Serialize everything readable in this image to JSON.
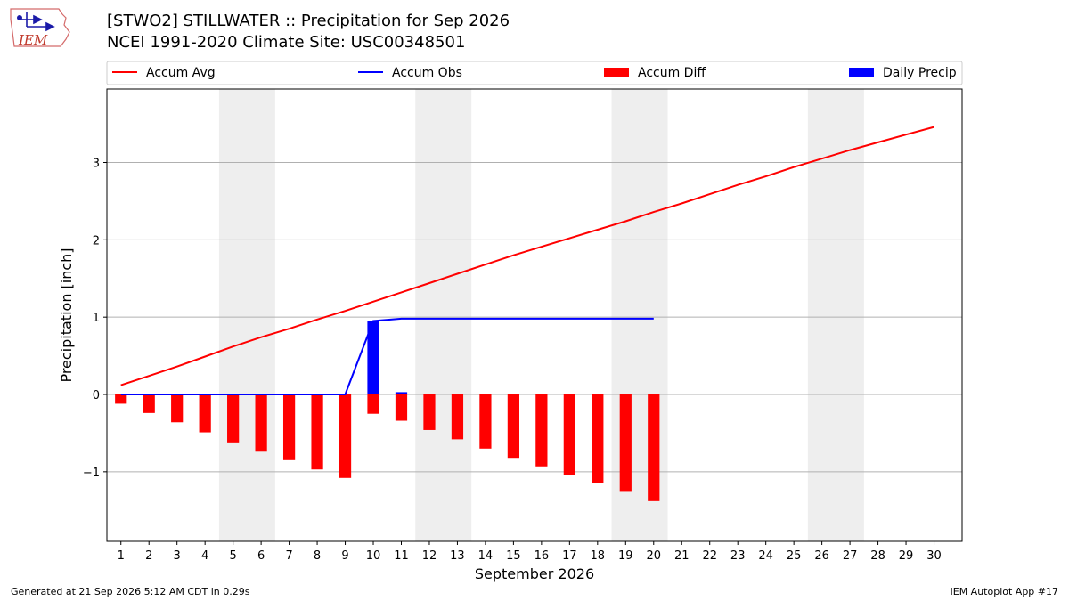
{
  "header": {
    "title": "[STWO2] STILLWATER :: Precipitation for Sep 2026",
    "subtitle": "NCEI 1991-2020 Climate Site: USC00348501",
    "logo_text": "IEM"
  },
  "footer": {
    "left": "Generated at 21 Sep 2026 5:12 AM CDT in 0.29s",
    "right": "IEM Autoplot App #17"
  },
  "colors": {
    "accum_avg": "#ff0000",
    "accum_obs": "#0000ff",
    "accum_diff": "#ff0000",
    "daily_precip": "#0000ff",
    "weekend_shade": "#eeeeee",
    "grid": "#b0b0b0"
  },
  "chart_data": {
    "type": "bar",
    "xlabel": "September 2026",
    "ylabel": "Precipitation [inch]",
    "x": [
      1,
      2,
      3,
      4,
      5,
      6,
      7,
      8,
      9,
      10,
      11,
      12,
      13,
      14,
      15,
      16,
      17,
      18,
      19,
      20,
      21,
      22,
      23,
      24,
      25,
      26,
      27,
      28,
      29,
      30
    ],
    "x_ticks": [
      "1",
      "2",
      "3",
      "4",
      "5",
      "6",
      "7",
      "8",
      "9",
      "10",
      "11",
      "12",
      "13",
      "14",
      "15",
      "16",
      "17",
      "18",
      "19",
      "20",
      "21",
      "22",
      "23",
      "24",
      "25",
      "26",
      "27",
      "28",
      "29",
      "30"
    ],
    "xlim": [
      0.5,
      31
    ],
    "ylim": [
      -1.9,
      3.95
    ],
    "y_ticks": [
      -1,
      0,
      1,
      2,
      3
    ],
    "y_tick_labels": [
      "−1",
      "0",
      "1",
      "2",
      "3"
    ],
    "grid": "horizontal",
    "legend_position": "top",
    "shaded_days": [
      [
        4.5,
        6.5
      ],
      [
        11.5,
        13.5
      ],
      [
        18.5,
        20.5
      ],
      [
        25.5,
        27.5
      ]
    ],
    "series": [
      {
        "name": "Accum Avg",
        "kind": "line",
        "x": [
          1,
          2,
          3,
          4,
          5,
          6,
          7,
          8,
          9,
          10,
          11,
          12,
          13,
          14,
          15,
          16,
          17,
          18,
          19,
          20,
          21,
          22,
          23,
          24,
          25,
          26,
          27,
          28,
          29,
          30
        ],
        "values": [
          0.12,
          0.24,
          0.36,
          0.49,
          0.62,
          0.74,
          0.85,
          0.97,
          1.08,
          1.2,
          1.32,
          1.44,
          1.56,
          1.68,
          1.8,
          1.91,
          2.02,
          2.13,
          2.24,
          2.36,
          2.47,
          2.59,
          2.71,
          2.82,
          2.94,
          3.05,
          3.16,
          3.26,
          3.36,
          3.46
        ]
      },
      {
        "name": "Accum Obs",
        "kind": "line",
        "x": [
          1,
          2,
          3,
          4,
          5,
          6,
          7,
          8,
          9,
          10,
          11,
          12,
          13,
          14,
          15,
          16,
          17,
          18,
          19,
          20
        ],
        "values": [
          0,
          0,
          0,
          0,
          0,
          0,
          0,
          0,
          0,
          0.95,
          0.98,
          0.98,
          0.98,
          0.98,
          0.98,
          0.98,
          0.98,
          0.98,
          0.98,
          0.98
        ]
      },
      {
        "name": "Accum Diff",
        "kind": "bar",
        "x": [
          1,
          2,
          3,
          4,
          5,
          6,
          7,
          8,
          9,
          10,
          11,
          12,
          13,
          14,
          15,
          16,
          17,
          18,
          19,
          20
        ],
        "values": [
          -0.12,
          -0.24,
          -0.36,
          -0.49,
          -0.62,
          -0.74,
          -0.85,
          -0.97,
          -1.08,
          -0.25,
          -0.34,
          -0.46,
          -0.58,
          -0.7,
          -0.82,
          -0.93,
          -1.04,
          -1.15,
          -1.26,
          -1.38
        ]
      },
      {
        "name": "Daily Precip",
        "kind": "bar",
        "x": [
          10,
          11
        ],
        "values": [
          0.95,
          0.03
        ]
      }
    ]
  }
}
